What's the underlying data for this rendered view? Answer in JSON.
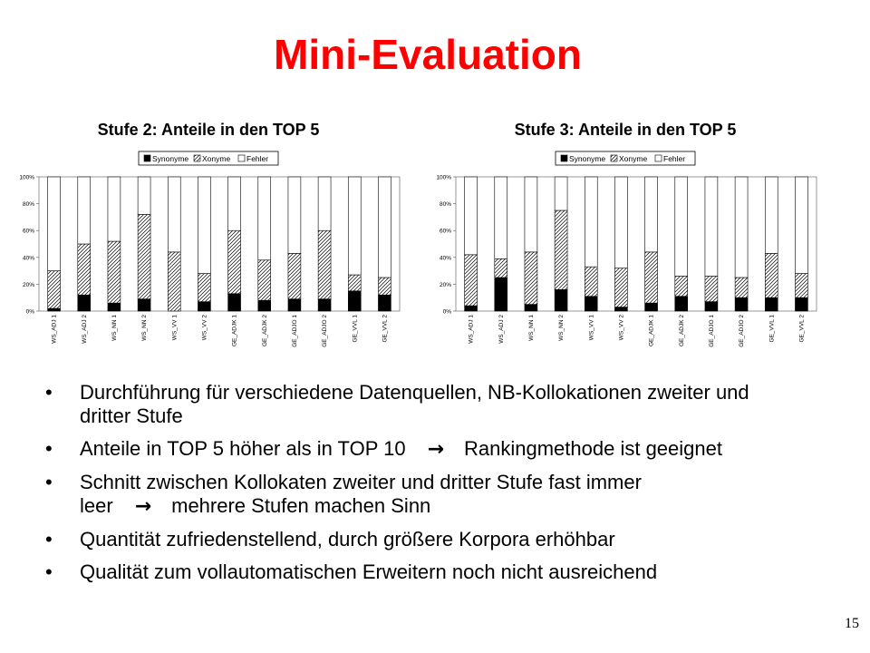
{
  "slide": {
    "title": "Mini-Evaluation",
    "page_number": "15"
  },
  "bullets": [
    {
      "segments": [
        "Durchführung für verschiedene Datenquellen, NB-Kollokationen zweiter und dritter Stufe"
      ]
    },
    {
      "segments": [
        "Anteile in TOP 5 höher als in TOP 10",
        "Rankingmethode ist geeignet"
      ]
    },
    {
      "segments": [
        "Schnitt zwischen Kollokaten zweiter und dritter Stufe fast immer leer",
        "mehrere Stufen machen Sinn"
      ]
    },
    {
      "segments": [
        "Quantität zufriedenstellend, durch größere Korpora erhöhbar"
      ]
    },
    {
      "segments": [
        "Qualität zum vollautomatischen Erweitern noch nicht ausreichend"
      ]
    }
  ],
  "chart_data": [
    {
      "type": "bar",
      "stacked": true,
      "title": "Stufe 2: Anteile in den TOP 5",
      "legend_position": "top",
      "categories": [
        "WS_ADJ 1",
        "WS_ADJ 2",
        "WS_NN 1",
        "WS_NN 2",
        "WS_VV 1",
        "WS_VV 2",
        "GE_ADJK 1",
        "GE_ADJK 2",
        "GE_ADJO 1",
        "GE_ADJO 2",
        "GE_VVL 1",
        "GE_VVL 2"
      ],
      "y_ticks": [
        "0%",
        "20%",
        "40%",
        "60%",
        "80%",
        "100%"
      ],
      "ylim": [
        0,
        100
      ],
      "grid": false,
      "series": [
        {
          "name": "Synonyme",
          "pattern": "solid-black",
          "values": [
            2,
            12,
            6,
            9,
            0,
            7,
            13,
            8,
            9,
            9,
            15,
            12
          ]
        },
        {
          "name": "Xonyme",
          "pattern": "hatched",
          "values": [
            28,
            38,
            46,
            63,
            44,
            21,
            47,
            30,
            34,
            51,
            12,
            13
          ]
        },
        {
          "name": "Fehler",
          "pattern": "white",
          "values": [
            70,
            50,
            48,
            28,
            56,
            72,
            40,
            62,
            57,
            40,
            73,
            75
          ]
        }
      ]
    },
    {
      "type": "bar",
      "stacked": true,
      "title": "Stufe 3: Anteile in den TOP 5",
      "legend_position": "top",
      "categories": [
        "WS_ADJ 1",
        "WS_ADJ 2",
        "WS_NN 1",
        "WS_NN 2",
        "WS_VV 1",
        "WS_VV 2",
        "GE_ADJK 1",
        "GE_ADJK 2",
        "GE_ADJO 1",
        "GE_ADJO 2",
        "GE_VVL 1",
        "GE_VVL 2"
      ],
      "y_ticks": [
        "0%",
        "20%",
        "40%",
        "60%",
        "80%",
        "100%"
      ],
      "ylim": [
        0,
        100
      ],
      "grid": false,
      "series": [
        {
          "name": "Synonyme",
          "pattern": "solid-black",
          "values": [
            4,
            25,
            5,
            16,
            11,
            3,
            6,
            11,
            7,
            10,
            10,
            10
          ]
        },
        {
          "name": "Xonyme",
          "pattern": "hatched",
          "values": [
            38,
            14,
            39,
            59,
            22,
            29,
            38,
            15,
            19,
            15,
            33,
            18
          ]
        },
        {
          "name": "Fehler",
          "pattern": "white",
          "values": [
            58,
            61,
            56,
            25,
            67,
            68,
            56,
            74,
            74,
            75,
            57,
            72
          ]
        }
      ]
    }
  ]
}
